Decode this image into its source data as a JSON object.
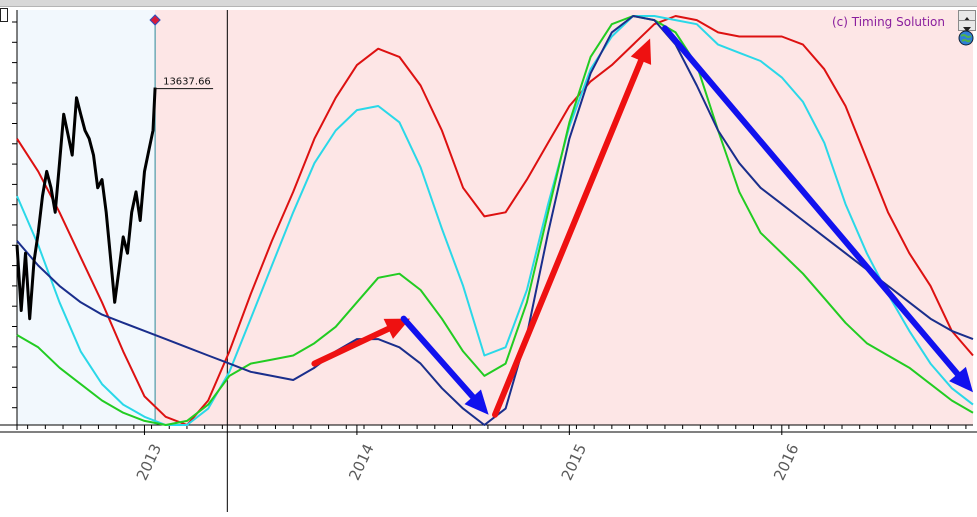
{
  "watermark": "(c) Timing Solution",
  "price_readout": "13637.66",
  "colors": {
    "history_bg": "#f2f8fd",
    "projection_bg": "#fde6e6",
    "price": "#000000",
    "red": "#dd1111",
    "cyan": "#2ad8e8",
    "green": "#22cc22",
    "navy": "#1a2e8c",
    "arrow_red": "#ee1111",
    "arrow_blue": "#1111ee"
  },
  "icons": {
    "scroll_up": "scroll-up-icon",
    "scroll_down": "scroll-down-icon",
    "globe": "globe-icon",
    "cursor_marker": "diamond-icon"
  },
  "chart_data": {
    "type": "line",
    "title": "",
    "subtitle": "",
    "xlabel": "",
    "ylabel": "",
    "xlim": [
      2012.4,
      2016.9
    ],
    "ylim": [
      0,
      100
    ],
    "x_ticks": [
      {
        "label": "2013",
        "x": 2013.0
      },
      {
        "label": "2014",
        "x": 2014.0
      },
      {
        "label": "2015",
        "x": 2015.0
      },
      {
        "label": "2016",
        "x": 2016.0
      }
    ],
    "grid": false,
    "legend": "none",
    "history_end": 2013.05,
    "projection_start": 2013.39,
    "annotations": [
      {
        "text": "13637.66",
        "x": 2013.05,
        "y": 82.5
      }
    ],
    "price_series": {
      "name": "",
      "x": [
        2012.4,
        2012.42,
        2012.44,
        2012.46,
        2012.48,
        2012.5,
        2012.52,
        2012.54,
        2012.56,
        2012.58,
        2012.6,
        2012.62,
        2012.64,
        2012.66,
        2012.68,
        2012.7,
        2012.72,
        2012.74,
        2012.76,
        2012.78,
        2012.8,
        2012.82,
        2012.84,
        2012.86,
        2012.88,
        2012.9,
        2012.92,
        2012.94,
        2012.96,
        2012.98,
        2013.0,
        2013.02,
        2013.04,
        2013.05
      ],
      "y": [
        44,
        28,
        42,
        26,
        40,
        47,
        56,
        62,
        58,
        52,
        64,
        76,
        71,
        66,
        80,
        76,
        72,
        70,
        66,
        58,
        60,
        52,
        41,
        30,
        38,
        46,
        42,
        52,
        57,
        50,
        62,
        67,
        72,
        82.5
      ]
    },
    "series": [
      {
        "name": "",
        "color": "#dd1111",
        "x": [
          2012.4,
          2012.5,
          2012.6,
          2012.7,
          2012.8,
          2012.9,
          2013.0,
          2013.1,
          2013.2,
          2013.3,
          2013.4,
          2013.5,
          2013.6,
          2013.7,
          2013.8,
          2013.9,
          2014.0,
          2014.1,
          2014.2,
          2014.3,
          2014.4,
          2014.5,
          2014.6,
          2014.7,
          2014.8,
          2014.9,
          2015.0,
          2015.1,
          2015.2,
          2015.3,
          2015.4,
          2015.5,
          2015.6,
          2015.7,
          2015.8,
          2015.9,
          2016.0,
          2016.1,
          2016.2,
          2016.3,
          2016.4,
          2016.5,
          2016.6,
          2016.7,
          2016.8,
          2016.9
        ],
        "y": [
          70,
          62,
          52,
          41,
          30,
          18,
          7,
          2,
          0,
          6,
          18,
          32,
          45,
          57,
          70,
          80,
          88,
          92,
          90,
          83,
          72,
          58,
          51,
          52,
          60,
          69,
          78,
          84,
          88,
          93,
          98,
          100,
          99,
          96,
          95,
          95,
          95,
          93,
          87,
          78,
          65,
          52,
          42,
          34,
          23,
          17
        ]
      },
      {
        "name": "",
        "color": "#2ad8e8",
        "x": [
          2012.4,
          2012.5,
          2012.6,
          2012.7,
          2012.8,
          2012.9,
          2013.0,
          2013.1,
          2013.2,
          2013.3,
          2013.4,
          2013.5,
          2013.6,
          2013.7,
          2013.8,
          2013.9,
          2014.0,
          2014.1,
          2014.2,
          2014.3,
          2014.4,
          2014.5,
          2014.6,
          2014.7,
          2014.8,
          2014.9,
          2015.0,
          2015.1,
          2015.2,
          2015.3,
          2015.4,
          2015.5,
          2015.6,
          2015.7,
          2015.8,
          2015.9,
          2016.0,
          2016.1,
          2016.2,
          2016.3,
          2016.4,
          2016.5,
          2016.6,
          2016.7,
          2016.8,
          2016.9
        ],
        "y": [
          56,
          44,
          30,
          18,
          10,
          5,
          2,
          0,
          0,
          4,
          13,
          26,
          39,
          52,
          64,
          72,
          77,
          78,
          74,
          63,
          48,
          34,
          17,
          19,
          33,
          54,
          73,
          87,
          95,
          100,
          100,
          99,
          98,
          93,
          91,
          89,
          85,
          79,
          69,
          54,
          42,
          32,
          23,
          15,
          9,
          5
        ]
      },
      {
        "name": "",
        "color": "#22cc22",
        "x": [
          2012.4,
          2012.5,
          2012.6,
          2012.7,
          2012.8,
          2012.9,
          2013.0,
          2013.1,
          2013.2,
          2013.3,
          2013.4,
          2013.5,
          2013.6,
          2013.7,
          2013.8,
          2013.9,
          2014.0,
          2014.1,
          2014.2,
          2014.3,
          2014.4,
          2014.5,
          2014.6,
          2014.7,
          2014.8,
          2014.9,
          2015.0,
          2015.1,
          2015.2,
          2015.3,
          2015.4,
          2015.5,
          2015.6,
          2015.7,
          2015.8,
          2015.9,
          2016.0,
          2016.1,
          2016.2,
          2016.3,
          2016.4,
          2016.5,
          2016.6,
          2016.7,
          2016.8,
          2016.9
        ],
        "y": [
          22,
          19,
          14,
          10,
          6,
          3,
          1,
          0,
          1,
          5,
          12,
          15,
          16,
          17,
          20,
          24,
          30,
          36,
          37,
          33,
          26,
          18,
          12,
          15,
          30,
          52,
          74,
          90,
          98,
          100,
          99,
          96,
          88,
          72,
          57,
          47,
          42,
          37,
          31,
          25,
          20,
          17,
          14,
          10,
          6,
          3
        ]
      },
      {
        "name": "",
        "color": "#1a2e8c",
        "x": [
          2012.4,
          2012.5,
          2012.6,
          2012.7,
          2012.8,
          2012.9,
          2013.0,
          2013.1,
          2013.2,
          2013.3,
          2013.4,
          2013.5,
          2013.6,
          2013.7,
          2013.8,
          2013.9,
          2014.0,
          2014.1,
          2014.2,
          2014.3,
          2014.4,
          2014.5,
          2014.6,
          2014.7,
          2014.8,
          2014.9,
          2015.0,
          2015.1,
          2015.2,
          2015.3,
          2015.4,
          2015.5,
          2015.6,
          2015.7,
          2015.8,
          2015.9,
          2016.0,
          2016.1,
          2016.2,
          2016.3,
          2016.4,
          2016.5,
          2016.6,
          2016.7,
          2016.8,
          2016.9
        ],
        "y": [
          45,
          39,
          34,
          30,
          27,
          25,
          23,
          21,
          19,
          17,
          15,
          13,
          12,
          11,
          14,
          18,
          21,
          21,
          19,
          15,
          9,
          4,
          0,
          4,
          22,
          47,
          70,
          86,
          96,
          100,
          99,
          93,
          83,
          72,
          64,
          58,
          54,
          50,
          46,
          42,
          38,
          34,
          30,
          26,
          23,
          21
        ]
      }
    ],
    "arrows": [
      {
        "color": "#ee1111",
        "from": [
          2013.8,
          15.0
        ],
        "to": [
          2014.25,
          26.0
        ]
      },
      {
        "color": "#1111ee",
        "from": [
          2014.22,
          26.0
        ],
        "to": [
          2014.62,
          2.5
        ]
      },
      {
        "color": "#ee1111",
        "from": [
          2014.65,
          2.5
        ],
        "to": [
          2015.38,
          94.5
        ]
      },
      {
        "color": "#1111ee",
        "from": [
          2015.45,
          97.0
        ],
        "to": [
          2016.9,
          8.0
        ]
      }
    ]
  }
}
